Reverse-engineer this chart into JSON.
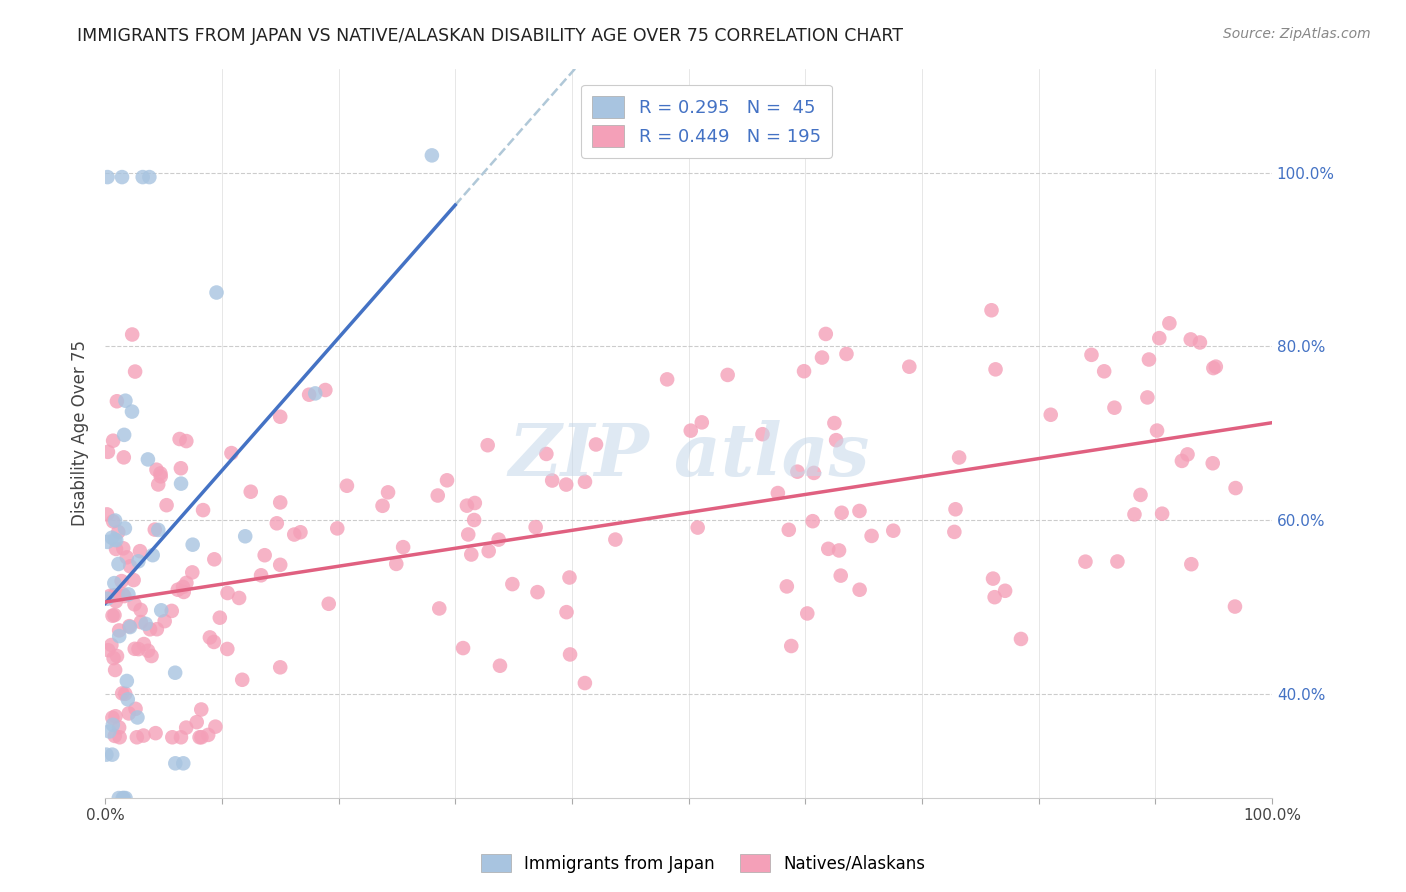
{
  "title": "IMMIGRANTS FROM JAPAN VS NATIVE/ALASKAN DISABILITY AGE OVER 75 CORRELATION CHART",
  "source": "Source: ZipAtlas.com",
  "ylabel": "Disability Age Over 75",
  "legend_label1": "Immigrants from Japan",
  "legend_label2": "Natives/Alaskans",
  "R1": 0.295,
  "N1": 45,
  "R2": 0.449,
  "N2": 195,
  "color_japan": "#a8c4e0",
  "color_native": "#f4a0b8",
  "color_japan_line": "#4472c4",
  "color_native_line": "#e06080",
  "color_dashed": "#b0c8d8",
  "watermark_color": "#c5d8ea",
  "watermark_text": "ZIP atlas",
  "background_color": "#ffffff",
  "xlim": [
    0.0,
    1.0
  ],
  "ylim": [
    0.28,
    1.12
  ],
  "right_yticks": [
    0.4,
    0.6,
    0.8,
    1.0
  ],
  "right_yticklabels": [
    "40.0%",
    "60.0%",
    "80.0%",
    "100.0%"
  ],
  "seed_japan": 7,
  "seed_native": 12
}
